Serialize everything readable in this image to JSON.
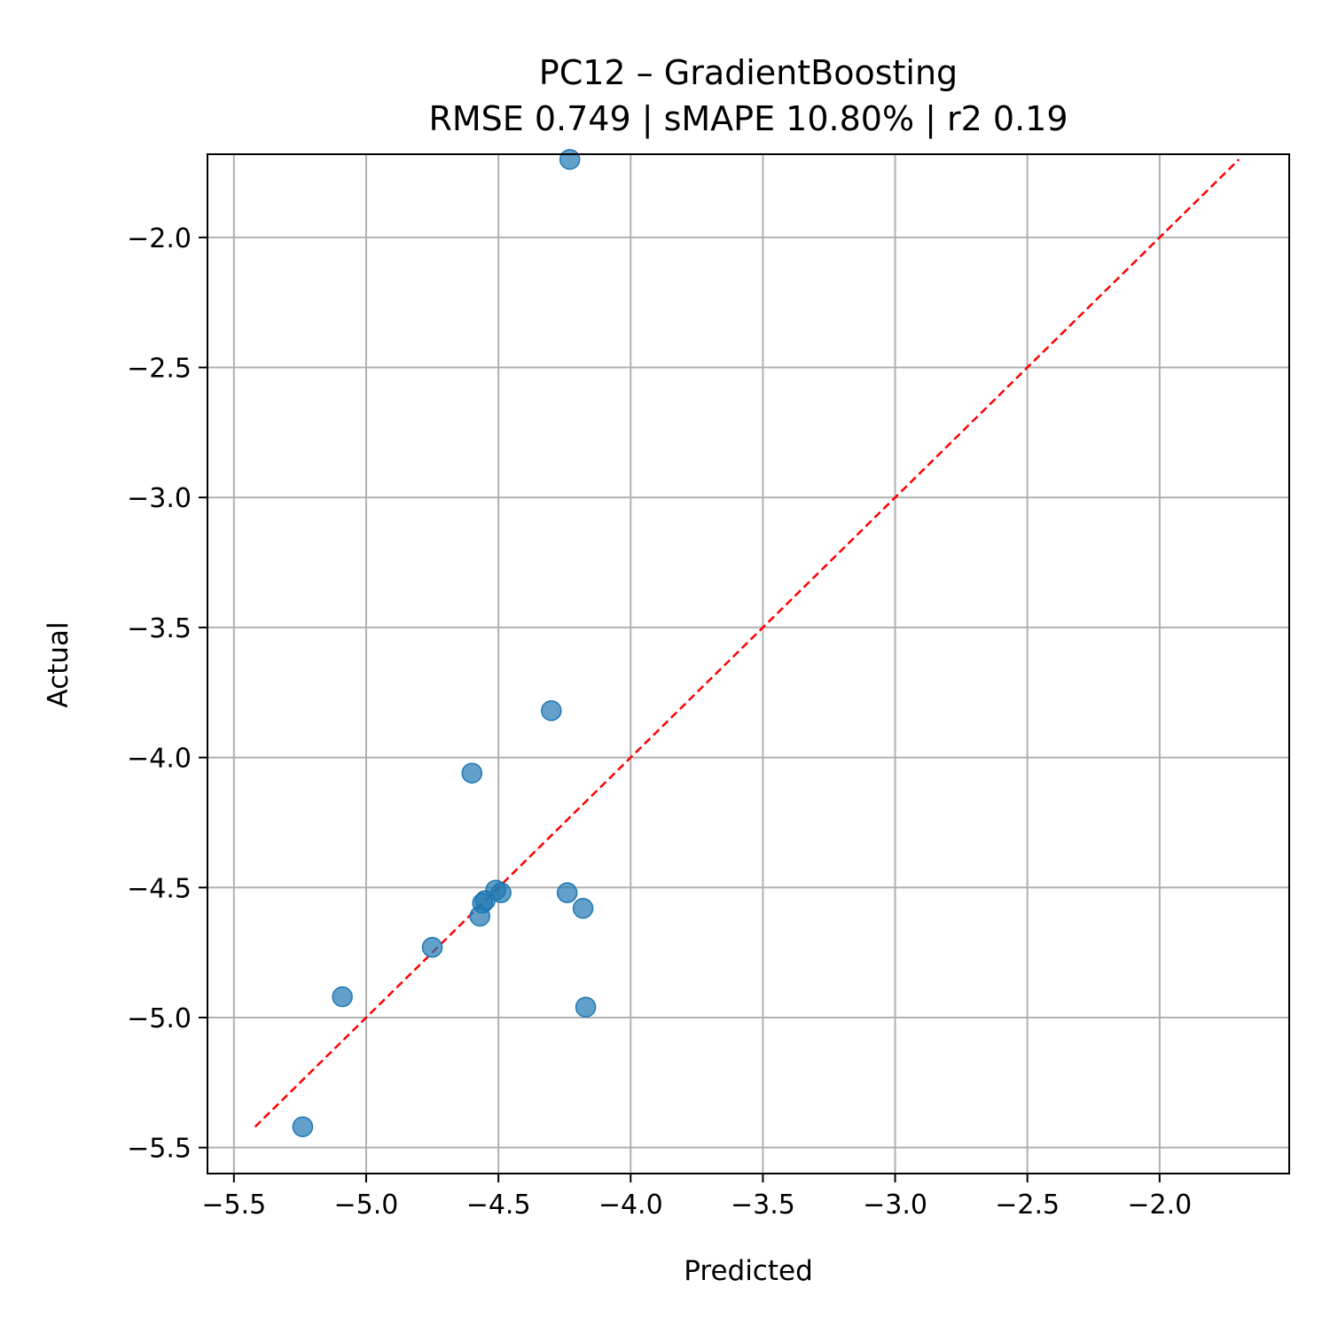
{
  "chart_data": {
    "type": "scatter",
    "title": "PC12 – GradientBoosting",
    "subtitle": "RMSE 0.749 | sMAPE 10.80%  | r2 0.19",
    "xlabel": "Predicted",
    "ylabel": "Actual",
    "xlim": [
      -5.6,
      -1.51
    ],
    "ylim": [
      -5.6,
      -1.68
    ],
    "x_ticks": [
      -5.5,
      -5.0,
      -4.5,
      -4.0,
      -3.5,
      -3.0,
      -2.5,
      -2.0
    ],
    "x_tick_labels": [
      "−5.5",
      "−5.0",
      "−4.5",
      "−4.0",
      "−3.5",
      "−3.0",
      "−2.5",
      "−2.0"
    ],
    "y_ticks": [
      -5.5,
      -5.0,
      -4.5,
      -4.0,
      -3.5,
      -3.0,
      -2.5,
      -2.0
    ],
    "y_tick_labels": [
      "−5.5",
      "−5.0",
      "−4.5",
      "−4.0",
      "−3.5",
      "−3.0",
      "−2.5",
      "−2.0"
    ],
    "grid": true,
    "points": [
      {
        "x": -4.23,
        "y": -1.7
      },
      {
        "x": -4.3,
        "y": -3.82
      },
      {
        "x": -4.6,
        "y": -4.06
      },
      {
        "x": -4.51,
        "y": -4.51
      },
      {
        "x": -4.49,
        "y": -4.52
      },
      {
        "x": -4.55,
        "y": -4.55
      },
      {
        "x": -4.56,
        "y": -4.56
      },
      {
        "x": -4.57,
        "y": -4.61
      },
      {
        "x": -4.24,
        "y": -4.52
      },
      {
        "x": -4.18,
        "y": -4.58
      },
      {
        "x": -4.75,
        "y": -4.73
      },
      {
        "x": -5.09,
        "y": -4.92
      },
      {
        "x": -4.17,
        "y": -4.96
      },
      {
        "x": -5.24,
        "y": -5.42
      }
    ],
    "reference_line": {
      "x": [
        -5.42,
        -1.7
      ],
      "y": [
        -5.42,
        -1.7
      ],
      "style": "dashed"
    },
    "colors": {
      "points": "#1f77b4",
      "reference_line": "#ff0000",
      "grid": "#b0b0b0",
      "axes": "#000000"
    }
  }
}
